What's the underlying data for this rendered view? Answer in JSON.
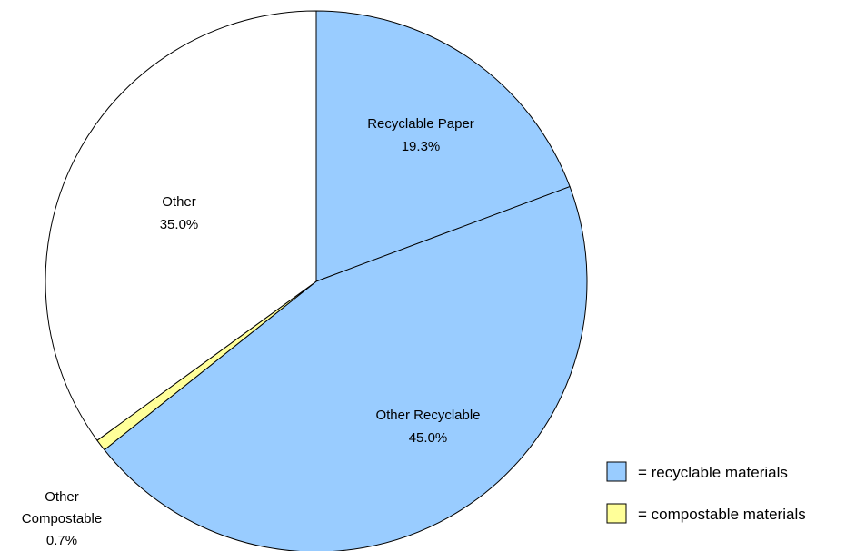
{
  "chart_data": {
    "type": "pie",
    "slices": [
      {
        "label": "Recyclable Paper",
        "value": 19.3,
        "value_label": "19.3%",
        "color": "#99ccff"
      },
      {
        "label": "Other Recyclable",
        "value": 45.0,
        "value_label": "45.0%",
        "color": "#99ccff"
      },
      {
        "label": "Other Compostable",
        "value": 0.7,
        "value_label": "0.7%",
        "color": "#ffff99"
      },
      {
        "label": "Other",
        "value": 35.0,
        "value_label": "35.0%",
        "color": "#ffffff"
      }
    ],
    "start_angle": "12 o'clock",
    "direction": "clockwise",
    "legend": {
      "placement": "bottom-right",
      "items": [
        {
          "label": "= recyclable materials",
          "color": "#99ccff"
        },
        {
          "label": "= compostable materials",
          "color": "#ffff99"
        }
      ]
    }
  }
}
